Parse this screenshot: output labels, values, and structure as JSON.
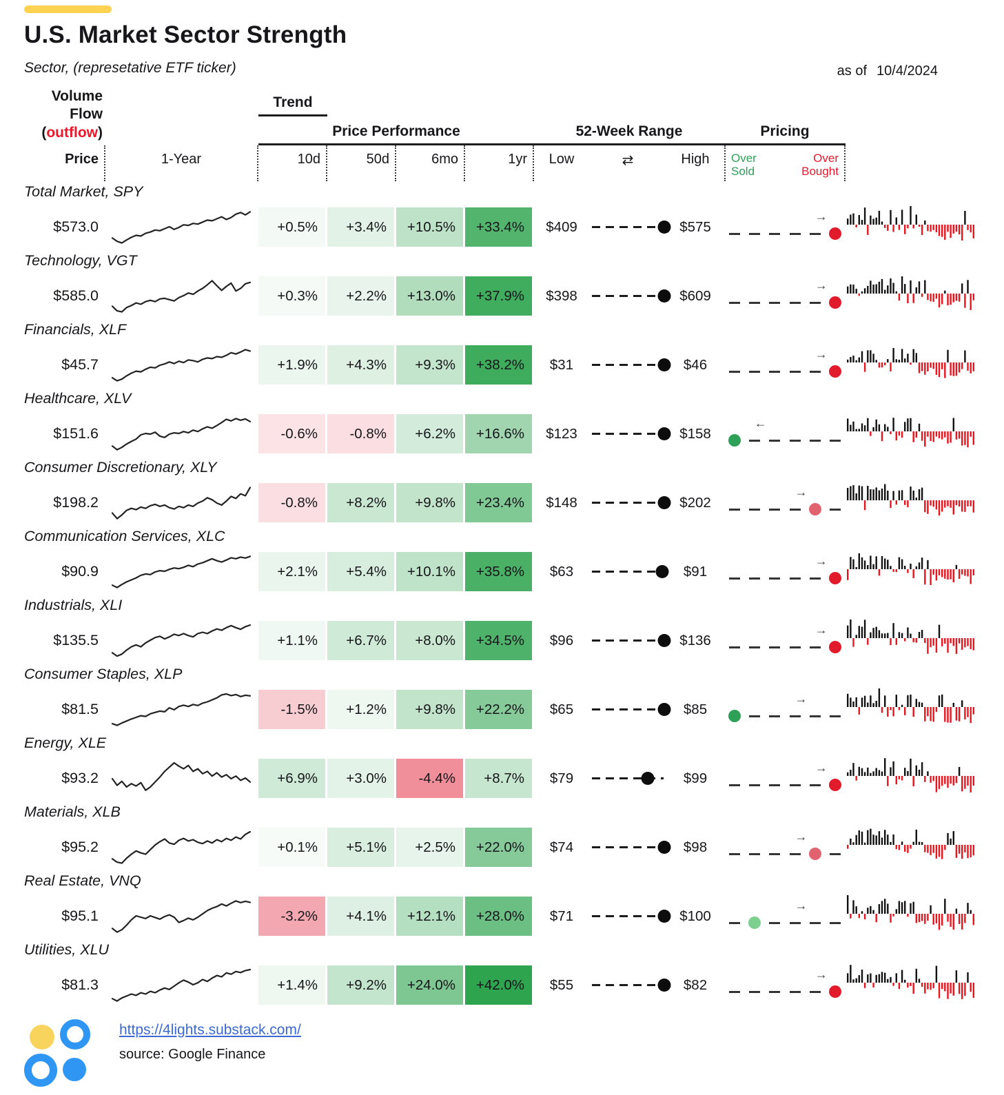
{
  "header": {
    "title": "U.S. Market Sector Strength",
    "subtitle": "Sector, (represetative ETF ticker)",
    "as_of_label": "as of",
    "as_of_date": "10/4/2024",
    "groups": {
      "trend": "Trend",
      "performance": "Price Performance",
      "range": "52-Week Range",
      "pricing": "Pricing"
    },
    "volume_title": {
      "line1": "Volume",
      "line2": "Flow",
      "outflow_word": "outflow"
    },
    "sub": {
      "price": "Price",
      "trend": "1-Year",
      "p10d": "10d",
      "p50d": "50d",
      "p6mo": "6mo",
      "p1yr": "1yr",
      "low": "Low",
      "range_icon": "⇄",
      "high": "High",
      "oversold_line1": "Over",
      "oversold_line2": "Sold",
      "overbought_line1": "Over",
      "overbought_line2": "Bought"
    }
  },
  "colors": {
    "accent_yellow": "#FFD351",
    "perf_green_full": "#2ea44f",
    "perf_red_full": "#ec6d7b",
    "oversold_green": "#2fa156",
    "overbought_red": "#e8192c",
    "outflow_red": "#e8192c",
    "volume_up_black": "#111111",
    "volume_down_red": "#e8141e",
    "range_dot_black": "#0d0d0d",
    "link_blue": "#3b69d1",
    "logo_blue": "#2f96f3",
    "logo_yellow": "#f9d45c"
  },
  "chart_data": {
    "type": "table",
    "title": "U.S. Market Sector Strength",
    "as_of": "10/4/2024",
    "columns": [
      "Price",
      "Trend 1-Year",
      "10d",
      "50d",
      "6mo",
      "1yr",
      "52w Low",
      "52w High",
      "Pricing",
      "Volume Flow"
    ],
    "rows": [
      {
        "label": "Total Market, SPY",
        "price": "$573.0",
        "perf": {
          "d10": "+0.5%",
          "d50": "+3.4%",
          "mo6": "+10.5%",
          "yr1": "+33.4%"
        },
        "low": "$409",
        "high": "$575",
        "range_pos": 0.97,
        "pricing": {
          "dot_slot": 6,
          "dot_color": "#e11b2c",
          "state": "overbought",
          "arrow": "→",
          "arrow_slot": 5
        },
        "trend": [
          0.18,
          0.08,
          0.03,
          0.12,
          0.2,
          0.26,
          0.24,
          0.32,
          0.36,
          0.42,
          0.4,
          0.46,
          0.52,
          0.44,
          0.5,
          0.58,
          0.56,
          0.62,
          0.6,
          0.66,
          0.72,
          0.7,
          0.76,
          0.82,
          0.74,
          0.8,
          0.9,
          0.95,
          0.88,
          0.97
        ]
      },
      {
        "label": "Technology, VGT",
        "price": "$585.0",
        "perf": {
          "d10": "+0.3%",
          "d50": "+2.2%",
          "mo6": "+13.0%",
          "yr1": "+37.9%"
        },
        "low": "$398",
        "high": "$609",
        "range_pos": 0.97,
        "pricing": {
          "dot_slot": 6,
          "dot_color": "#e11b2c",
          "state": "overbought",
          "arrow": "→",
          "arrow_slot": 5
        },
        "trend": [
          0.2,
          0.06,
          0.03,
          0.16,
          0.22,
          0.3,
          0.26,
          0.34,
          0.38,
          0.34,
          0.42,
          0.44,
          0.4,
          0.36,
          0.46,
          0.52,
          0.6,
          0.56,
          0.66,
          0.74,
          0.85,
          0.97,
          0.82,
          0.68,
          0.8,
          0.9,
          0.66,
          0.74,
          0.88,
          0.92
        ]
      },
      {
        "label": "Financials, XLF",
        "price": "$45.7",
        "perf": {
          "d10": "+1.9%",
          "d50": "+4.3%",
          "mo6": "+9.3%",
          "yr1": "+38.2%"
        },
        "low": "$31",
        "high": "$46",
        "range_pos": 0.97,
        "pricing": {
          "dot_slot": 6,
          "dot_color": "#e11b2c",
          "state": "overbought",
          "arrow": "→",
          "arrow_slot": 5
        },
        "trend": [
          0.12,
          0.03,
          0.08,
          0.18,
          0.26,
          0.32,
          0.3,
          0.38,
          0.44,
          0.42,
          0.5,
          0.54,
          0.6,
          0.55,
          0.62,
          0.58,
          0.66,
          0.64,
          0.6,
          0.68,
          0.72,
          0.7,
          0.76,
          0.74,
          0.8,
          0.88,
          0.84,
          0.9,
          0.97,
          0.93
        ]
      },
      {
        "label": "Healthcare, XLV",
        "price": "$151.6",
        "perf": {
          "d10": "-0.6%",
          "d50": "-0.8%",
          "mo6": "+6.2%",
          "yr1": "+16.6%"
        },
        "low": "$123",
        "high": "$158",
        "range_pos": 0.97,
        "pricing": {
          "dot_slot": 1,
          "dot_color": "#2fa156",
          "state": "oversold",
          "arrow": "←",
          "arrow_slot": 2
        },
        "trend": [
          0.14,
          0.03,
          0.1,
          0.2,
          0.28,
          0.35,
          0.48,
          0.52,
          0.5,
          0.56,
          0.44,
          0.4,
          0.5,
          0.54,
          0.52,
          0.58,
          0.54,
          0.62,
          0.58,
          0.66,
          0.72,
          0.68,
          0.76,
          0.85,
          0.95,
          0.9,
          0.97,
          0.92,
          0.96,
          0.88
        ]
      },
      {
        "label": "Consumer Discretionary, XLY",
        "price": "$198.2",
        "perf": {
          "d10": "-0.8%",
          "d50": "+8.2%",
          "mo6": "+9.8%",
          "yr1": "+23.4%"
        },
        "low": "$148",
        "high": "$202",
        "range_pos": 0.97,
        "pricing": {
          "dot_slot": 5,
          "dot_color": "#e0636f",
          "state": "near-overbought",
          "arrow": "→",
          "arrow_slot": 4
        },
        "trend": [
          0.2,
          0.03,
          0.14,
          0.28,
          0.34,
          0.3,
          0.38,
          0.34,
          0.42,
          0.46,
          0.4,
          0.44,
          0.36,
          0.32,
          0.4,
          0.36,
          0.44,
          0.4,
          0.5,
          0.56,
          0.66,
          0.6,
          0.5,
          0.44,
          0.56,
          0.7,
          0.64,
          0.78,
          0.72,
          0.97
        ]
      },
      {
        "label": "Communication Services, XLC",
        "price": "$90.9",
        "perf": {
          "d10": "+2.1%",
          "d50": "+5.4%",
          "mo6": "+10.1%",
          "yr1": "+35.8%"
        },
        "low": "$63",
        "high": "$91",
        "range_pos": 0.95,
        "pricing": {
          "dot_slot": 6,
          "dot_color": "#e11b2c",
          "state": "overbought",
          "arrow": "→",
          "arrow_slot": 5
        },
        "trend": [
          0.1,
          0.03,
          0.12,
          0.2,
          0.26,
          0.32,
          0.4,
          0.44,
          0.42,
          0.5,
          0.54,
          0.52,
          0.58,
          0.62,
          0.6,
          0.64,
          0.7,
          0.66,
          0.74,
          0.78,
          0.84,
          0.9,
          0.84,
          0.8,
          0.86,
          0.93,
          0.9,
          0.95,
          0.92,
          0.97
        ]
      },
      {
        "label": "Industrials, XLI",
        "price": "$135.5",
        "perf": {
          "d10": "+1.1%",
          "d50": "+6.7%",
          "mo6": "+8.0%",
          "yr1": "+34.5%"
        },
        "low": "$96",
        "high": "$136",
        "range_pos": 0.97,
        "pricing": {
          "dot_slot": 6,
          "dot_color": "#e11b2c",
          "state": "overbought",
          "arrow": "→",
          "arrow_slot": 5
        },
        "trend": [
          0.14,
          0.04,
          0.1,
          0.22,
          0.32,
          0.38,
          0.32,
          0.44,
          0.52,
          0.6,
          0.64,
          0.56,
          0.62,
          0.7,
          0.66,
          0.72,
          0.66,
          0.62,
          0.72,
          0.76,
          0.72,
          0.8,
          0.86,
          0.82,
          0.9,
          0.96,
          0.9,
          0.85,
          0.93,
          0.98
        ]
      },
      {
        "label": "Consumer Staples, XLP",
        "price": "$81.5",
        "perf": {
          "d10": "-1.5%",
          "d50": "+1.2%",
          "mo6": "+9.8%",
          "yr1": "+22.2%"
        },
        "low": "$65",
        "high": "$85",
        "range_pos": 0.97,
        "pricing": {
          "dot_slot": 1,
          "dot_color": "#2fa156",
          "state": "oversold",
          "arrow": "→",
          "arrow_slot": 4
        },
        "trend": [
          0.08,
          0.03,
          0.1,
          0.16,
          0.22,
          0.27,
          0.32,
          0.3,
          0.38,
          0.42,
          0.46,
          0.44,
          0.56,
          0.5,
          0.6,
          0.64,
          0.6,
          0.66,
          0.63,
          0.7,
          0.74,
          0.8,
          0.86,
          0.95,
          0.98,
          0.93,
          0.96,
          0.9,
          0.94,
          0.92
        ]
      },
      {
        "label": "Energy, XLE",
        "price": "$93.2",
        "perf": {
          "d10": "+6.9%",
          "d50": "+3.0%",
          "mo6": "-4.4%",
          "yr1": "+8.7%"
        },
        "low": "$79",
        "high": "$99",
        "range_pos": 0.76,
        "pricing": {
          "dot_slot": 6,
          "dot_color": "#e11b2c",
          "state": "overbought",
          "arrow": "→",
          "arrow_slot": 5
        },
        "trend": [
          0.5,
          0.3,
          0.42,
          0.25,
          0.35,
          0.28,
          0.38,
          0.15,
          0.25,
          0.4,
          0.55,
          0.72,
          0.85,
          0.98,
          0.88,
          0.8,
          0.9,
          0.72,
          0.8,
          0.65,
          0.72,
          0.58,
          0.68,
          0.55,
          0.62,
          0.5,
          0.58,
          0.45,
          0.52,
          0.4
        ]
      },
      {
        "label": "Materials, XLB",
        "price": "$95.2",
        "perf": {
          "d10": "+0.1%",
          "d50": "+5.1%",
          "mo6": "+2.5%",
          "yr1": "+22.0%"
        },
        "low": "$74",
        "high": "$98",
        "range_pos": 0.97,
        "pricing": {
          "dot_slot": 5,
          "dot_color": "#e0636f",
          "state": "near-overbought",
          "arrow": "→",
          "arrow_slot": 4
        },
        "trend": [
          0.16,
          0.06,
          0.03,
          0.18,
          0.3,
          0.4,
          0.34,
          0.3,
          0.44,
          0.58,
          0.68,
          0.76,
          0.64,
          0.6,
          0.72,
          0.78,
          0.7,
          0.74,
          0.66,
          0.62,
          0.7,
          0.64,
          0.74,
          0.68,
          0.78,
          0.72,
          0.82,
          0.76,
          0.9,
          0.98
        ]
      },
      {
        "label": "Real Estate, VNQ",
        "price": "$95.1",
        "perf": {
          "d10": "-3.2%",
          "d50": "+4.1%",
          "mo6": "+12.1%",
          "yr1": "+28.0%"
        },
        "low": "$71",
        "high": "$100",
        "range_pos": 0.97,
        "pricing": {
          "dot_slot": 2,
          "dot_color": "#7ccf8e",
          "state": "near-oversold",
          "arrow": "→",
          "arrow_slot": 4
        },
        "trend": [
          0.14,
          0.03,
          0.1,
          0.24,
          0.4,
          0.52,
          0.48,
          0.44,
          0.52,
          0.47,
          0.42,
          0.5,
          0.55,
          0.48,
          0.32,
          0.38,
          0.45,
          0.4,
          0.48,
          0.58,
          0.68,
          0.75,
          0.8,
          0.88,
          0.82,
          0.9,
          0.97,
          0.92,
          0.96,
          0.93
        ]
      },
      {
        "label": "Utilities, XLU",
        "price": "$81.3",
        "perf": {
          "d10": "+1.4%",
          "d50": "+9.2%",
          "mo6": "+24.0%",
          "yr1": "+42.0%"
        },
        "low": "$55",
        "high": "$82",
        "range_pos": 0.97,
        "pricing": {
          "dot_slot": 6,
          "dot_color": "#e11b2c",
          "state": "overbought",
          "arrow": "→",
          "arrow_slot": 5
        },
        "trend": [
          0.1,
          0.03,
          0.12,
          0.18,
          0.24,
          0.2,
          0.28,
          0.24,
          0.32,
          0.28,
          0.36,
          0.42,
          0.38,
          0.48,
          0.58,
          0.66,
          0.6,
          0.52,
          0.58,
          0.68,
          0.62,
          0.72,
          0.8,
          0.76,
          0.88,
          0.84,
          0.92,
          0.89,
          0.95,
          0.98
        ]
      }
    ]
  },
  "footer": {
    "link": "https://4lights.substack.com/",
    "source": "source: Google Finance"
  }
}
